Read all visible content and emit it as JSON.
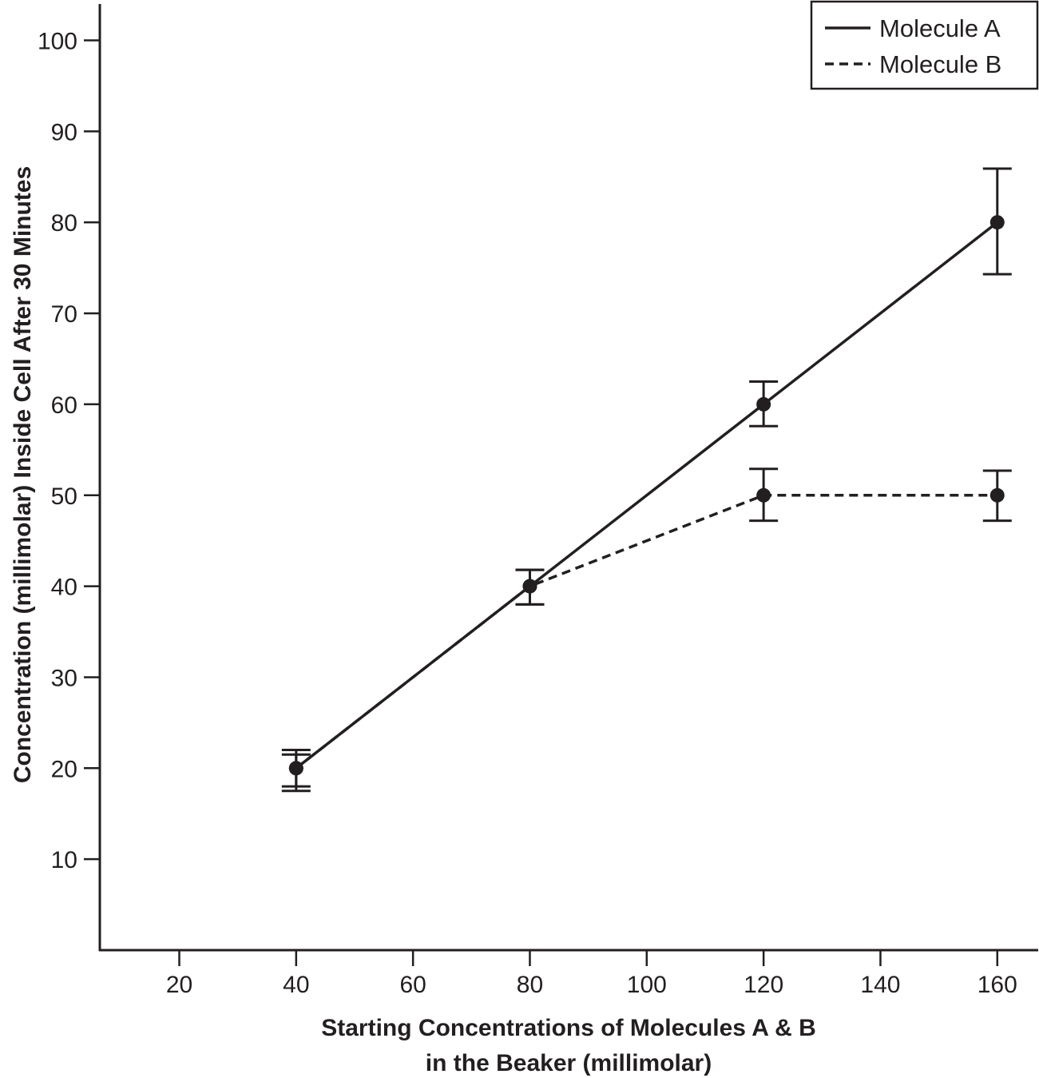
{
  "chart_data": {
    "type": "line",
    "title": "",
    "xlabel_lines": [
      "Starting Concentrations of Molecules A & B",
      "in the Beaker (millimolar)"
    ],
    "ylabel": "Concentration (millimolar) Inside Cell After 30 Minutes",
    "xlim": [
      6.4,
      167
    ],
    "ylim": [
      0,
      104
    ],
    "xticks": [
      20,
      40,
      60,
      80,
      100,
      120,
      140,
      160
    ],
    "yticks": [
      10,
      20,
      30,
      40,
      50,
      60,
      70,
      80,
      90,
      100
    ],
    "grid": false,
    "legend_position": "top-right",
    "series": [
      {
        "name": "Molecule A",
        "style": "solid",
        "x": [
          40,
          80,
          120,
          160
        ],
        "y": [
          20,
          40,
          60,
          80
        ],
        "err_high": [
          22.0,
          41.8,
          62.5,
          85.9
        ],
        "err_low": [
          17.5,
          38.0,
          57.6,
          74.3
        ]
      },
      {
        "name": "Molecule B",
        "style": "dashed",
        "x": [
          40,
          80,
          120,
          160
        ],
        "y": [
          20,
          40,
          50,
          50
        ],
        "err_high": [
          21.5,
          41.8,
          52.9,
          52.7
        ],
        "err_low": [
          18.0,
          38.0,
          47.2,
          47.2
        ]
      }
    ],
    "color": "#231f20"
  }
}
